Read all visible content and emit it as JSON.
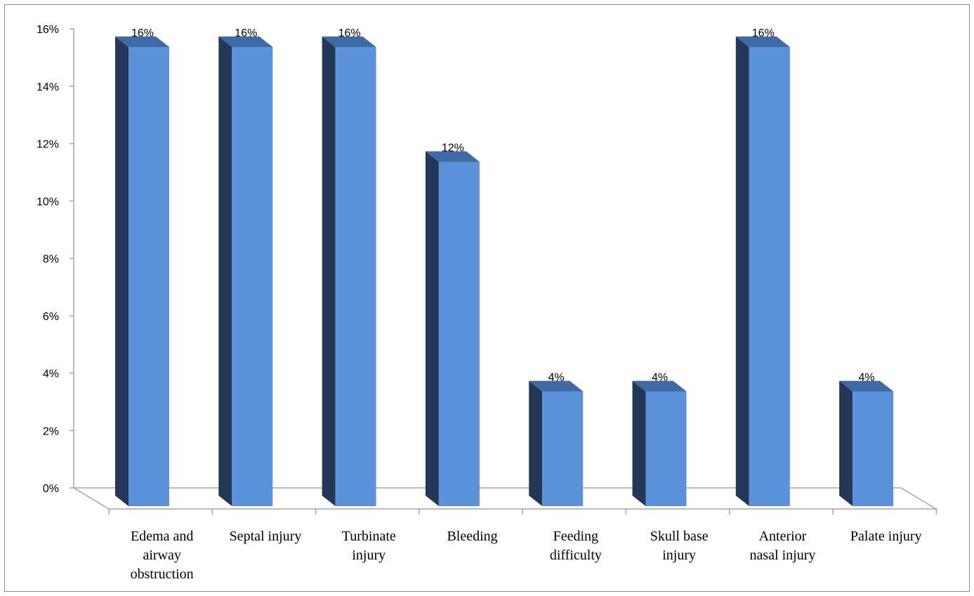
{
  "chart_data": {
    "type": "bar",
    "style": "3d-column",
    "categories": [
      "Edema and airway obstruction",
      "Septal injury",
      "Turbinate injury",
      "Bleeding",
      "Feeding difficulty",
      "Skull base injury",
      "Anterior nasal injury",
      "Palate injury"
    ],
    "category_lines": [
      [
        "Edema and",
        "airway",
        "obstruction"
      ],
      [
        "Septal injury"
      ],
      [
        "Turbinate",
        "injury"
      ],
      [
        "Bleeding"
      ],
      [
        "Feeding",
        "difficulty"
      ],
      [
        "Skull base",
        "injury"
      ],
      [
        "Anterior",
        "nasal injury"
      ],
      [
        "Palate injury"
      ]
    ],
    "values": [
      16,
      16,
      16,
      12,
      4,
      4,
      16,
      4
    ],
    "data_labels": [
      "16%",
      "16%",
      "16%",
      "12%",
      "4%",
      "4%",
      "16%",
      "4%"
    ],
    "y_ticks": [
      0,
      2,
      4,
      6,
      8,
      10,
      12,
      14,
      16
    ],
    "y_tick_labels": [
      "0%",
      "2%",
      "4%",
      "6%",
      "8%",
      "10%",
      "12%",
      "14%",
      "16%"
    ],
    "ylim": [
      0,
      16
    ],
    "title": "",
    "xlabel": "",
    "ylabel": "",
    "grid": false,
    "legend": "none",
    "colors": {
      "bar_front": "#5b92d9",
      "bar_side": "#233858",
      "bar_top": "#3e6aa6",
      "axis": "#a6a6a6",
      "frame": "#8c8c8c"
    }
  }
}
